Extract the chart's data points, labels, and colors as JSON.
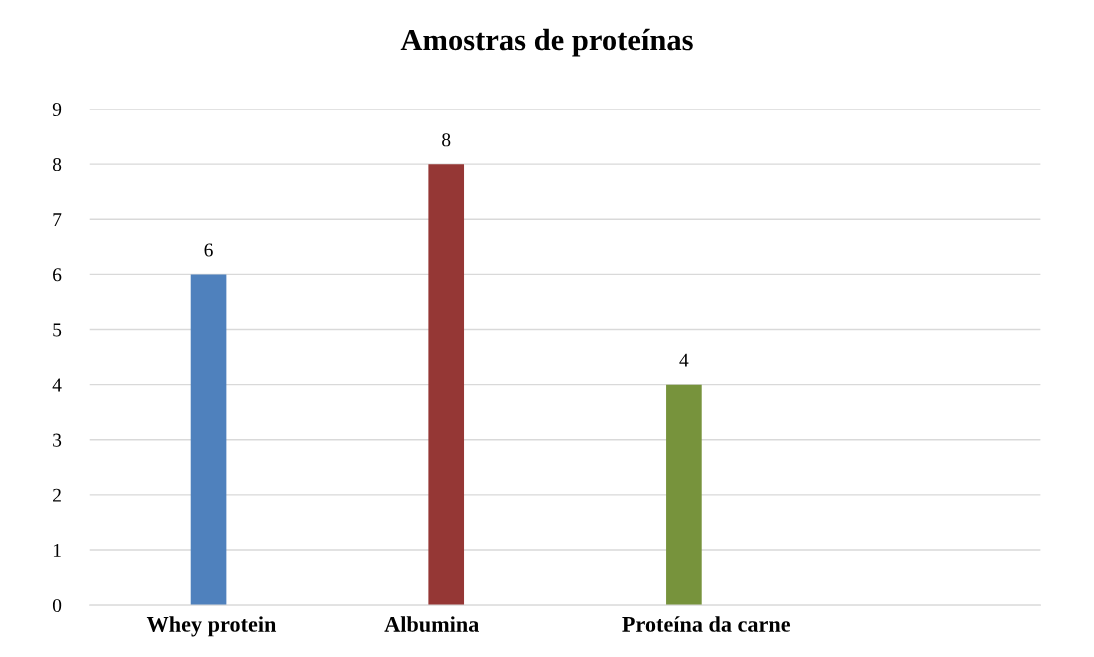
{
  "chart_data": {
    "type": "bar",
    "title": "Amostras de proteínas",
    "categories": [
      "Whey protein",
      "Albumina",
      "Proteína da carne",
      null
    ],
    "values": [
      6,
      8,
      4,
      null
    ],
    "colors": [
      "#4f81bd",
      "#953735",
      "#77933c",
      null
    ],
    "ylim": [
      0,
      9
    ],
    "yticks": [
      0,
      1,
      2,
      3,
      4,
      5,
      6,
      7,
      8,
      9
    ],
    "grid": "y",
    "data_labels": true,
    "legend": false
  }
}
